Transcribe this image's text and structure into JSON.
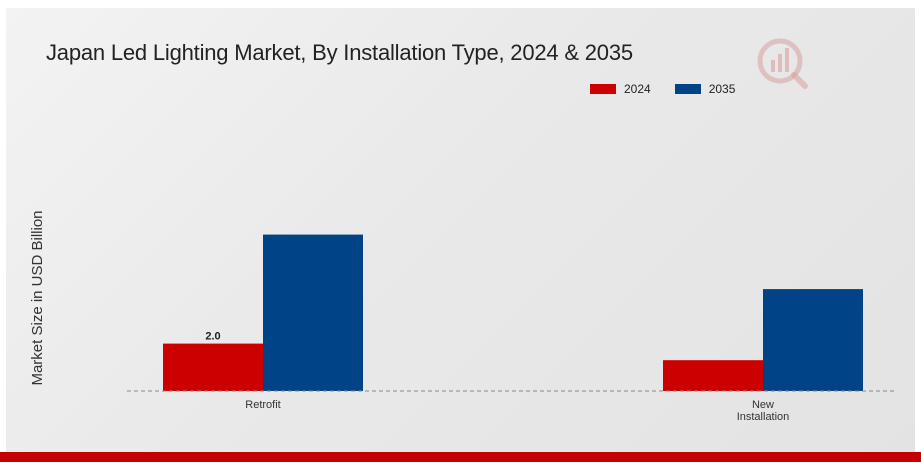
{
  "chart_data": {
    "type": "bar",
    "title": "Japan Led Lighting Market, By Installation Type, 2024 & 2035",
    "xlabel": "",
    "ylabel": "Market Size in USD Billion",
    "categories": [
      "Retrofit",
      "New Installation"
    ],
    "category_lines": [
      [
        "Retrofit"
      ],
      [
        "New",
        "Installation"
      ]
    ],
    "series": [
      {
        "name": "2024",
        "color": "#cc0000",
        "values": [
          2.0,
          1.3
        ]
      },
      {
        "name": "2035",
        "color": "#004487",
        "values": [
          6.6,
          4.3
        ]
      }
    ],
    "data_labels": [
      {
        "series": 0,
        "category": 0,
        "text": "2.0"
      }
    ],
    "ylim": [
      0,
      10
    ],
    "grid": false,
    "legend_position": "top-right",
    "baseline_style": "dashed"
  },
  "branding": {
    "logo_icon": "market-research-logo-icon",
    "accent_color": "#c40000"
  }
}
